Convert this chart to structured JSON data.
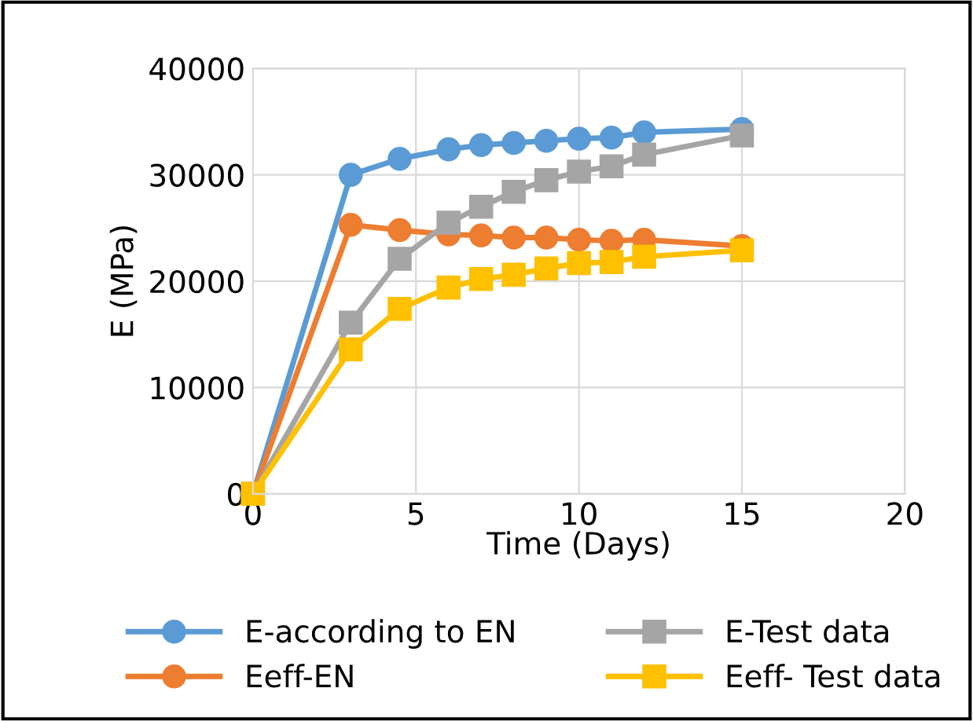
{
  "chart_data": {
    "type": "line",
    "xlabel": "Time (Days)",
    "ylabel": "E (MPa)",
    "xlim": [
      0,
      20
    ],
    "xticks": [
      0,
      5,
      10,
      15,
      20
    ],
    "ylim": [
      0,
      40000
    ],
    "yticks": [
      0,
      10000,
      20000,
      30000,
      40000
    ],
    "grid": true,
    "legend": "bottom",
    "x": [
      0,
      3,
      4.5,
      6,
      7,
      8,
      9,
      10,
      11,
      12,
      15
    ],
    "series": [
      {
        "name": "E-according to EN",
        "color": "#5b9bd5",
        "marker": "circle",
        "values": [
          0,
          30000,
          31500,
          32400,
          32800,
          33000,
          33200,
          33400,
          33500,
          34000,
          34300
        ]
      },
      {
        "name": "Eeff-EN",
        "color": "#ed7d31",
        "marker": "circle",
        "values": [
          0,
          25300,
          24800,
          24400,
          24300,
          24100,
          24100,
          23900,
          23800,
          23900,
          23300
        ]
      },
      {
        "name": "E-Test data",
        "color": "#a5a5a5",
        "marker": "square",
        "values": [
          0,
          16100,
          22100,
          25500,
          27000,
          28400,
          29500,
          30300,
          30800,
          31900,
          33700
        ]
      },
      {
        "name": "Eeff- Test data",
        "color": "#ffc000",
        "marker": "square",
        "values": [
          0,
          13600,
          17400,
          19400,
          20200,
          20600,
          21200,
          21700,
          21800,
          22300,
          22900
        ]
      }
    ]
  }
}
